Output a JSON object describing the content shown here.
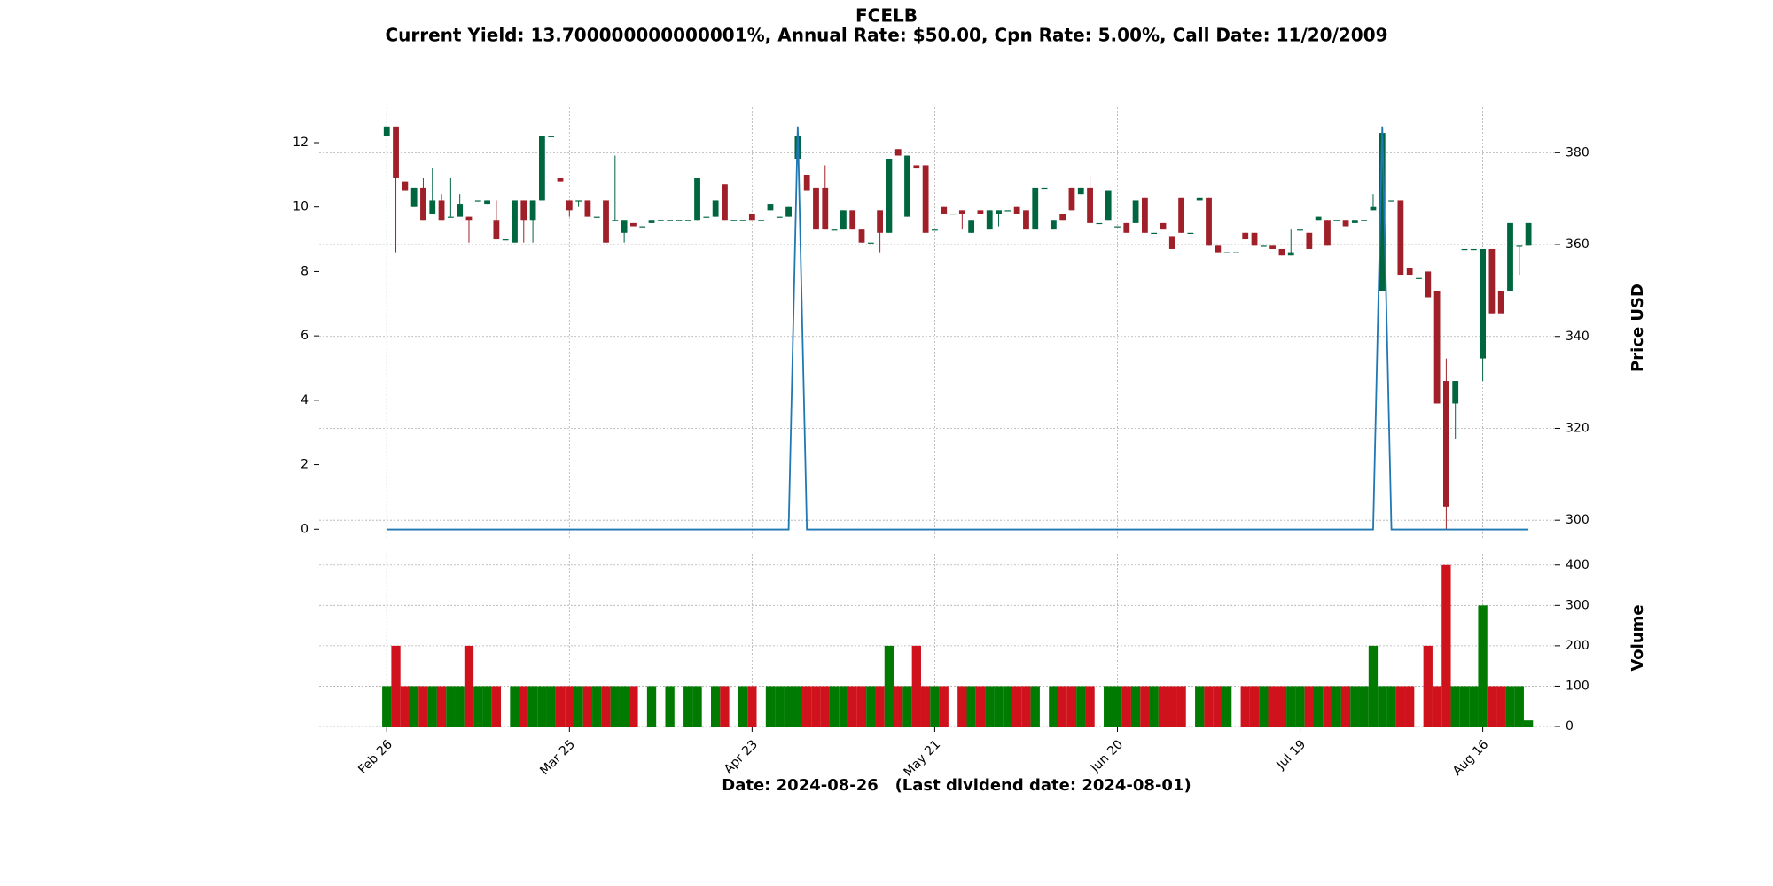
{
  "chart_data": [
    {
      "type": "candlestick",
      "title": "FCELB",
      "subtitle": "Current Yield: 13.700000000000001%, Annual Rate: $50.00, Cpn Rate: 5.00%, Call Date: 11/20/2009",
      "y2label": "Price USD",
      "up_color": "#00663f",
      "down_color": "#a0202a",
      "grid": true,
      "ylim": [
        -0.35,
        13.1
      ],
      "yticks": [
        0,
        2,
        4,
        6,
        8,
        10,
        12
      ],
      "y2lim": [
        295.6,
        389.9
      ],
      "y2ticks": [
        300,
        320,
        340,
        360,
        380
      ],
      "open": [
        12.2,
        12.5,
        10.8,
        10.0,
        10.6,
        9.8,
        10.2,
        9.7,
        9.7,
        9.7,
        10.2,
        10.1,
        9.6,
        9.0,
        8.9,
        10.2,
        9.6,
        10.2,
        12.2,
        10.9,
        10.2,
        10.2,
        10.2,
        9.7,
        10.2,
        9.6,
        9.2,
        9.5,
        9.4,
        9.5,
        9.6,
        9.6,
        9.6,
        9.6,
        9.6,
        9.7,
        9.7,
        10.7,
        9.6,
        9.6,
        9.8,
        9.6,
        9.9,
        9.7,
        9.7,
        11.5,
        11.0,
        10.6,
        10.6,
        9.3,
        9.3,
        9.9,
        9.3,
        8.9,
        9.9,
        9.2,
        11.8,
        9.7,
        11.3,
        11.3,
        9.3,
        10.0,
        9.8,
        9.9,
        9.2,
        9.9,
        9.3,
        9.8,
        9.9,
        10.0,
        9.9,
        9.3,
        10.6,
        9.3,
        9.8,
        10.6,
        10.4,
        10.6,
        9.5,
        9.6,
        9.4,
        9.5,
        9.5,
        10.3,
        9.2,
        9.5,
        9.1,
        10.3,
        9.2,
        10.2,
        10.3,
        8.8,
        8.6,
        8.6,
        9.2,
        9.2,
        8.8,
        8.8,
        8.7,
        8.5,
        9.3,
        9.2,
        9.6,
        9.6,
        9.6,
        9.6,
        9.5,
        9.6,
        9.9,
        7.4,
        10.2,
        10.2,
        8.1,
        7.8,
        8.0,
        7.4,
        4.6,
        3.9,
        8.7,
        8.7,
        5.3,
        8.7,
        7.4,
        7.4,
        8.8,
        8.8
      ],
      "high": [
        12.5,
        12.5,
        10.8,
        10.6,
        10.9,
        11.2,
        10.4,
        10.9,
        10.4,
        9.7,
        10.2,
        10.2,
        10.2,
        9.0,
        10.2,
        10.2,
        10.2,
        12.2,
        12.2,
        10.9,
        10.2,
        10.2,
        10.2,
        9.7,
        10.2,
        11.6,
        9.6,
        9.5,
        9.4,
        9.6,
        9.6,
        9.6,
        9.6,
        9.6,
        10.9,
        9.7,
        10.2,
        10.7,
        9.6,
        9.6,
        9.8,
        9.6,
        10.1,
        9.7,
        10.0,
        12.2,
        11.0,
        10.6,
        11.3,
        9.3,
        9.9,
        9.9,
        9.3,
        8.9,
        9.9,
        11.5,
        11.8,
        11.6,
        11.3,
        11.3,
        9.3,
        10.0,
        9.8,
        9.9,
        9.6,
        9.9,
        9.9,
        9.9,
        9.9,
        10.0,
        9.9,
        10.6,
        10.6,
        9.6,
        9.8,
        10.6,
        10.6,
        11.0,
        9.5,
        10.5,
        9.4,
        9.5,
        10.2,
        10.3,
        9.2,
        9.5,
        9.1,
        10.3,
        9.2,
        10.3,
        10.3,
        8.8,
        8.6,
        8.6,
        9.2,
        9.2,
        8.8,
        8.8,
        8.7,
        9.3,
        9.3,
        9.2,
        9.7,
        9.6,
        9.6,
        9.6,
        9.6,
        9.6,
        10.4,
        12.3,
        10.2,
        10.2,
        8.1,
        7.8,
        8.0,
        7.4,
        5.3,
        4.6,
        8.7,
        8.7,
        8.7,
        8.7,
        7.4,
        9.5,
        8.8,
        9.5
      ],
      "low": [
        12.2,
        8.6,
        10.5,
        10.0,
        9.6,
        9.8,
        9.6,
        9.7,
        9.7,
        8.9,
        10.2,
        10.1,
        9.0,
        9.0,
        8.9,
        8.9,
        8.9,
        10.2,
        12.2,
        10.8,
        9.7,
        10.0,
        9.7,
        9.7,
        8.9,
        9.6,
        8.9,
        9.4,
        9.4,
        9.5,
        9.6,
        9.6,
        9.6,
        9.6,
        9.6,
        9.7,
        9.7,
        9.6,
        9.6,
        9.6,
        9.6,
        9.6,
        9.9,
        9.7,
        9.7,
        11.5,
        10.5,
        9.3,
        9.3,
        9.3,
        9.3,
        9.3,
        8.9,
        8.9,
        8.6,
        9.2,
        11.6,
        9.7,
        11.2,
        9.2,
        9.3,
        9.8,
        9.8,
        9.3,
        9.2,
        9.8,
        9.3,
        9.4,
        9.9,
        9.8,
        9.3,
        9.3,
        10.6,
        9.3,
        9.6,
        9.9,
        10.4,
        9.5,
        9.5,
        9.6,
        9.4,
        9.2,
        9.5,
        9.2,
        9.2,
        9.3,
        8.7,
        9.2,
        9.2,
        10.2,
        8.8,
        8.6,
        8.6,
        8.6,
        9.0,
        8.8,
        8.8,
        8.7,
        8.5,
        8.5,
        9.3,
        8.7,
        9.6,
        8.8,
        9.6,
        9.4,
        9.5,
        9.6,
        9.9,
        7.4,
        10.2,
        7.9,
        7.9,
        7.8,
        7.2,
        3.9,
        0,
        2.8,
        8.7,
        8.7,
        4.6,
        6.7,
        6.7,
        7.4,
        7.9,
        8.8
      ],
      "close": [
        12.5,
        10.9,
        10.5,
        10.6,
        9.6,
        10.2,
        9.6,
        9.7,
        10.1,
        9.6,
        10.2,
        10.2,
        9.0,
        9.0,
        10.2,
        9.6,
        10.2,
        12.2,
        12.2,
        10.8,
        9.9,
        10.2,
        9.7,
        9.7,
        8.9,
        9.6,
        9.6,
        9.4,
        9.4,
        9.6,
        9.6,
        9.6,
        9.6,
        9.6,
        10.9,
        9.7,
        10.2,
        9.6,
        9.6,
        9.6,
        9.6,
        9.6,
        10.1,
        9.7,
        10.0,
        12.2,
        10.5,
        9.3,
        9.3,
        9.3,
        9.9,
        9.3,
        8.9,
        8.9,
        9.2,
        11.5,
        11.6,
        11.6,
        11.2,
        9.2,
        9.3,
        9.8,
        9.8,
        9.8,
        9.6,
        9.8,
        9.9,
        9.9,
        9.9,
        9.8,
        9.3,
        10.6,
        10.6,
        9.6,
        9.6,
        9.9,
        10.6,
        9.5,
        9.5,
        10.5,
        9.4,
        9.2,
        10.2,
        9.2,
        9.2,
        9.3,
        8.7,
        9.2,
        9.2,
        10.3,
        8.8,
        8.6,
        8.6,
        8.6,
        9.0,
        8.8,
        8.8,
        8.7,
        8.5,
        8.6,
        9.3,
        8.7,
        9.7,
        8.8,
        9.6,
        9.4,
        9.6,
        9.6,
        10.0,
        12.3,
        10.2,
        7.9,
        7.9,
        7.8,
        7.2,
        3.9,
        0.7,
        4.6,
        8.7,
        8.7,
        8.7,
        6.7,
        6.7,
        9.5,
        8.8,
        9.5
      ],
      "series": [
        {
          "color": "#1f77b4",
          "axis": "y2",
          "values": [
            298,
            298,
            298,
            298,
            298,
            298,
            298,
            298,
            298,
            298,
            298,
            298,
            298,
            298,
            298,
            298,
            298,
            298,
            298,
            298,
            298,
            298,
            298,
            298,
            298,
            298,
            298,
            298,
            298,
            298,
            298,
            298,
            298,
            298,
            298,
            298,
            298,
            298,
            298,
            298,
            298,
            298,
            298,
            298,
            298,
            385.7,
            298,
            298,
            298,
            298,
            298,
            298,
            298,
            298,
            298,
            298,
            298,
            298,
            298,
            298,
            298,
            298,
            298,
            298,
            298,
            298,
            298,
            298,
            298,
            298,
            298,
            298,
            298,
            298,
            298,
            298,
            298,
            298,
            298,
            298,
            298,
            298,
            298,
            298,
            298,
            298,
            298,
            298,
            298,
            298,
            298,
            298,
            298,
            298,
            298,
            298,
            298,
            298,
            298,
            298,
            298,
            298,
            298,
            298,
            298,
            298,
            298,
            298,
            298,
            385.7,
            298,
            298,
            298,
            298,
            298,
            298,
            298,
            298,
            298,
            298,
            298,
            298,
            298,
            298,
            298,
            298
          ]
        }
      ]
    },
    {
      "type": "bar",
      "ylabel": "Volume",
      "xlabel": "Date: 2024-08-26   (Last dividend date: 2024-08-01)",
      "up_color": "#007a00",
      "down_color": "#d0121c",
      "grid": true,
      "ylim": [
        0,
        428
      ],
      "yticks": [
        0,
        100,
        200,
        300,
        400
      ],
      "categories": [
        "Feb 26",
        null,
        null,
        null,
        null,
        null,
        null,
        null,
        null,
        null,
        null,
        null,
        null,
        null,
        null,
        null,
        null,
        null,
        null,
        null,
        "Mar 25",
        null,
        null,
        null,
        null,
        null,
        null,
        null,
        null,
        null,
        null,
        null,
        null,
        null,
        null,
        null,
        null,
        null,
        null,
        null,
        "Apr 23",
        null,
        null,
        null,
        null,
        null,
        null,
        null,
        null,
        null,
        null,
        null,
        null,
        null,
        null,
        null,
        null,
        null,
        null,
        null,
        "May 21",
        null,
        null,
        null,
        null,
        null,
        null,
        null,
        null,
        null,
        null,
        null,
        null,
        null,
        null,
        null,
        null,
        null,
        null,
        null,
        "Jun 20",
        null,
        null,
        null,
        null,
        null,
        null,
        null,
        null,
        null,
        null,
        null,
        null,
        null,
        null,
        null,
        null,
        null,
        null,
        null,
        "Jul 19",
        null,
        null,
        null,
        null,
        null,
        null,
        null,
        null,
        null,
        null,
        null,
        null,
        null,
        null,
        null,
        null,
        null,
        null,
        null,
        "Aug 16",
        null,
        null,
        null,
        null,
        null
      ],
      "values": [
        100,
        200,
        100,
        100,
        100,
        100,
        100,
        100,
        100,
        200,
        100,
        100,
        100,
        0,
        100,
        100,
        100,
        100,
        100,
        100,
        100,
        100,
        100,
        100,
        100,
        100,
        100,
        100,
        0,
        100,
        0,
        100,
        0,
        100,
        100,
        0,
        100,
        100,
        0,
        100,
        100,
        0,
        100,
        100,
        100,
        100,
        100,
        100,
        100,
        100,
        100,
        100,
        100,
        100,
        100,
        200,
        100,
        100,
        200,
        100,
        100,
        100,
        0,
        100,
        100,
        100,
        100,
        100,
        100,
        100,
        100,
        100,
        0,
        100,
        100,
        100,
        100,
        100,
        0,
        100,
        100,
        100,
        100,
        100,
        100,
        100,
        100,
        100,
        0,
        100,
        100,
        100,
        100,
        0,
        100,
        100,
        100,
        100,
        100,
        100,
        100,
        100,
        100,
        100,
        100,
        100,
        100,
        100,
        200,
        100,
        100,
        100,
        100,
        0,
        200,
        100,
        400,
        100,
        100,
        100,
        300,
        100,
        100,
        100,
        100,
        15
      ]
    }
  ]
}
